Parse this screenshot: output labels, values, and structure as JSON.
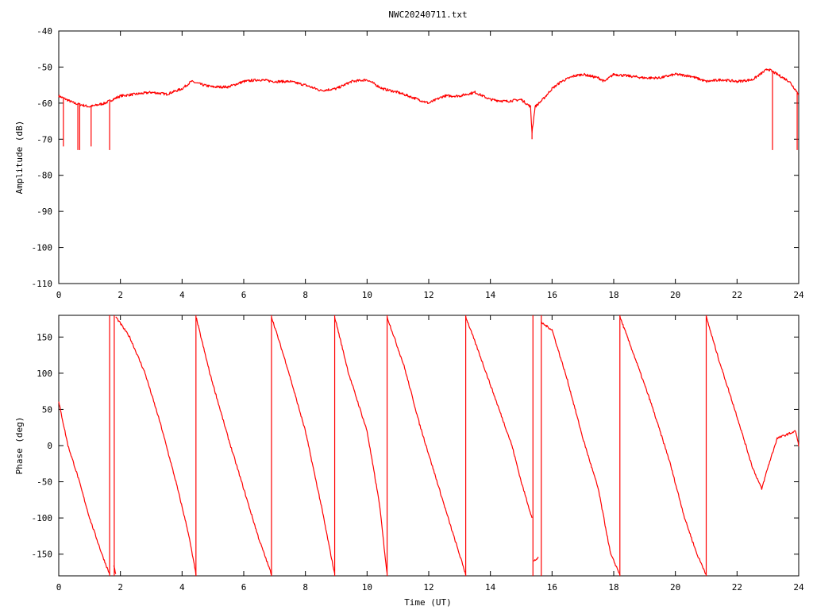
{
  "chart_data": [
    {
      "type": "line",
      "title": "NWC20240711.txt",
      "xlabel": "",
      "ylabel": "Amplitude (dB)",
      "xlim": [
        0,
        24
      ],
      "ylim": [
        -110,
        -40
      ],
      "x_ticks": [
        "0",
        "2",
        "4",
        "6",
        "8",
        "10",
        "12",
        "14",
        "16",
        "18",
        "20",
        "22",
        "24"
      ],
      "y_ticks": [
        "-40",
        "-50",
        "-60",
        "-70",
        "-80",
        "-90",
        "-100",
        "-110"
      ],
      "grid": false,
      "color": "#ff0000",
      "series": [
        {
          "x": [
            0,
            0.5,
            1.0,
            1.5,
            2.0,
            2.5,
            3.0,
            3.5,
            4.0,
            4.3,
            4.7,
            5.0,
            5.5,
            6.0,
            6.5,
            7.0,
            7.5,
            8.0,
            8.5,
            9.0,
            9.5,
            10.0,
            10.5,
            11.0,
            11.5,
            12.0,
            12.5,
            13.0,
            13.5,
            14.0,
            14.5,
            15.0,
            15.3,
            15.35,
            15.45,
            15.7,
            16.0,
            16.3,
            16.7,
            17.0,
            17.5,
            17.7,
            18.0,
            18.5,
            19.0,
            19.5,
            20.0,
            20.5,
            21.0,
            21.5,
            22.0,
            22.5,
            23.0,
            23.3,
            23.7,
            24.0
          ],
          "values": [
            -58,
            -60,
            -61,
            -60,
            -58,
            -57.5,
            -57,
            -57.5,
            -56,
            -54,
            -55,
            -55.5,
            -55.5,
            -54,
            -53.5,
            -54,
            -54,
            -55,
            -56.5,
            -56,
            -54,
            -53.5,
            -56,
            -57,
            -58.5,
            -60,
            -58,
            -58,
            -57,
            -59,
            -59.5,
            -59,
            -61,
            -68,
            -61,
            -59,
            -56,
            -54,
            -52.5,
            -52,
            -53,
            -54,
            -52,
            -52.5,
            -53,
            -53,
            -52,
            -52.5,
            -54,
            -53.5,
            -54,
            -53.5,
            -50.5,
            -52,
            -54,
            -57.5
          ]
        }
      ],
      "spikes": [
        {
          "x": 0.15,
          "to": -72
        },
        {
          "x": 0.62,
          "to": -73
        },
        {
          "x": 0.68,
          "to": -73
        },
        {
          "x": 1.05,
          "to": -72
        },
        {
          "x": 1.65,
          "to": -73
        },
        {
          "x": 15.35,
          "to": -70
        },
        {
          "x": 23.15,
          "to": -73
        },
        {
          "x": 23.95,
          "to": -73
        }
      ]
    },
    {
      "type": "line",
      "title": "",
      "xlabel": "Time (UT)",
      "ylabel": "Phase (deg)",
      "xlim": [
        0,
        24
      ],
      "ylim": [
        -180,
        180
      ],
      "x_ticks": [
        "0",
        "2",
        "4",
        "6",
        "8",
        "10",
        "12",
        "14",
        "16",
        "18",
        "20",
        "22",
        "24"
      ],
      "y_ticks": [
        "150",
        "100",
        "50",
        "0",
        "-50",
        "-100",
        "-150"
      ],
      "y_tick_values": [
        150,
        100,
        50,
        0,
        -50,
        -100,
        -150
      ],
      "grid": false,
      "color": "#ff0000",
      "segments": [
        {
          "x": [
            0,
            0.3,
            0.6,
            1.0,
            1.4,
            1.65
          ],
          "values": [
            60,
            0,
            -40,
            -100,
            -150,
            -178
          ]
        },
        {
          "x": [
            1.78,
            1.85
          ],
          "values": [
            -165,
            -178
          ]
        },
        {
          "x": [
            1.85,
            2.3,
            2.8,
            3.3,
            3.8,
            4.2,
            4.45
          ],
          "values": [
            178,
            150,
            100,
            30,
            -50,
            -120,
            -178
          ]
        },
        {
          "x": [
            4.45,
            4.9,
            5.5,
            6.0,
            6.5,
            6.9
          ],
          "values": [
            178,
            100,
            10,
            -60,
            -130,
            -178
          ]
        },
        {
          "x": [
            6.9,
            7.4,
            8.0,
            8.5,
            8.95
          ],
          "values": [
            178,
            110,
            20,
            -80,
            -178
          ]
        },
        {
          "x": [
            8.95,
            9.4,
            10.0,
            10.4,
            10.65
          ],
          "values": [
            178,
            100,
            20,
            -80,
            -178
          ]
        },
        {
          "x": [
            10.65,
            11.2,
            11.7,
            12.2,
            12.7,
            13.2
          ],
          "values": [
            178,
            110,
            30,
            -40,
            -110,
            -178
          ]
        },
        {
          "x": [
            13.2,
            13.7,
            14.2,
            14.7,
            15.0,
            15.35
          ],
          "values": [
            178,
            120,
            60,
            0,
            -50,
            -100
          ]
        },
        {
          "x": [
            15.4,
            15.55
          ],
          "values": [
            -160,
            -155
          ]
        },
        {
          "x": [
            15.65,
            16.0,
            16.5,
            17.0,
            17.5,
            17.9,
            18.2
          ],
          "values": [
            170,
            160,
            90,
            10,
            -60,
            -150,
            -178
          ]
        },
        {
          "x": [
            18.2,
            18.7,
            19.2,
            19.8,
            20.3,
            20.7,
            21.0
          ],
          "values": [
            178,
            120,
            60,
            -20,
            -100,
            -150,
            -178
          ]
        },
        {
          "x": [
            21.0,
            21.4,
            22.0,
            22.5,
            22.8,
            23.0,
            23.3,
            23.6,
            23.9,
            24.0
          ],
          "values": [
            178,
            120,
            40,
            -30,
            -60,
            -30,
            10,
            15,
            20,
            0
          ]
        }
      ],
      "wraps": [
        1.65,
        1.8,
        4.45,
        6.9,
        8.95,
        10.65,
        13.2,
        15.38,
        15.65,
        18.2,
        21.0
      ]
    }
  ]
}
